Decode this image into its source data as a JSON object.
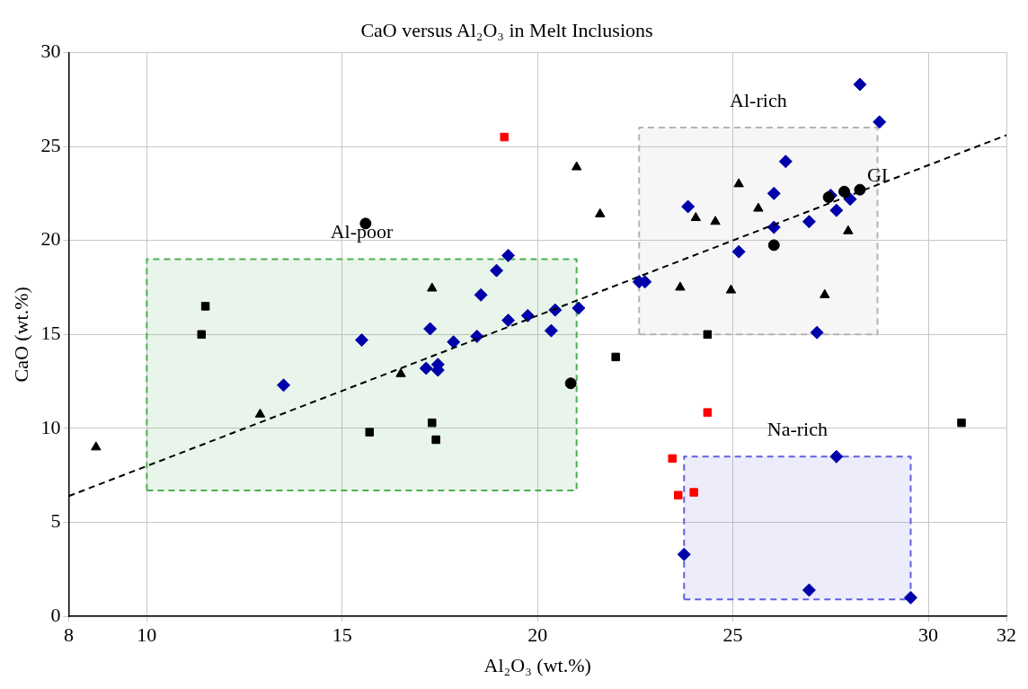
{
  "chart_data": {
    "type": "scatter",
    "title": "CaO versus Al₂O₃ in Melt Inclusions",
    "xlabel": "Al₂O₃ (wt.%)",
    "ylabel": "CaO (wt.%)",
    "xlim": [
      8,
      32
    ],
    "xticks": [
      8,
      10,
      15,
      20,
      25,
      30,
      32
    ],
    "ylim": [
      0,
      30
    ],
    "yticks": [
      0,
      5,
      10,
      15,
      20,
      25,
      30
    ],
    "grid": true,
    "legend": false,
    "series": [
      {
        "type": "area",
        "name": "Al-poor",
        "color": "#4caf50",
        "line_style": "dashed",
        "marker": "none",
        "x": [
          10,
          21,
          21,
          10,
          10
        ],
        "values": [
          6.7,
          6.7,
          19,
          19,
          6.7
        ]
      },
      {
        "type": "area",
        "name": "Al-rich",
        "color": "#b4b4b4",
        "line_style": "dashed",
        "marker": "none",
        "x": [
          22.6,
          28.7,
          28.7,
          22.6,
          22.6
        ],
        "values": [
          15,
          15,
          26,
          26,
          15
        ]
      },
      {
        "type": "area",
        "name": "Na-rich",
        "color": "#6060e0",
        "line_style": "dashed",
        "marker": "none",
        "x": [
          23.75,
          29.55,
          29.55,
          23.75,
          23.75
        ],
        "values": [
          0.9,
          0.9,
          8.5,
          8.5,
          0.9
        ]
      },
      {
        "type": "scatter",
        "color": "#0000aa",
        "marker": "diamond",
        "x": [
          13.5,
          15.5,
          17.15,
          17.25,
          17.45,
          17.45,
          17.85,
          18.45,
          18.55,
          18.95,
          19.25,
          19.25,
          19.75,
          20.45,
          20.35,
          21.05,
          22.6,
          22.75,
          23.85,
          26.35,
          26.05,
          26.05,
          25.15,
          26.95,
          27.65,
          28.0,
          27.5,
          27.15,
          28.25,
          28.75,
          27.65,
          23.75,
          26.95,
          29.55
        ],
        "values": [
          12.3,
          14.7,
          13.2,
          15.3,
          13.4,
          13.1,
          14.6,
          14.9,
          17.1,
          18.4,
          19.2,
          15.75,
          16.0,
          16.3,
          15.2,
          16.4,
          17.8,
          17.8,
          21.8,
          24.2,
          22.5,
          20.7,
          19.4,
          21.0,
          21.6,
          22.2,
          22.4,
          15.1,
          28.3,
          26.3,
          8.5,
          3.3,
          1.4,
          1.0
        ]
      },
      {
        "type": "scatter",
        "color": "#000000",
        "marker": "triangle",
        "x": [
          8.7,
          12.9,
          16.5,
          17.3,
          21.0,
          21.6,
          25.15,
          24.05,
          24.55,
          25.65,
          23.65,
          24.95,
          27.35,
          27.95
        ],
        "values": [
          9.0,
          10.75,
          12.9,
          17.45,
          23.9,
          21.4,
          23.0,
          21.2,
          21.0,
          21.7,
          17.5,
          17.35,
          17.1,
          20.5
        ]
      },
      {
        "type": "scatter",
        "color": "#000000",
        "marker": "circle",
        "x": [
          15.6,
          26.05,
          27.45,
          28.25
        ],
        "values": [
          20.9,
          19.75,
          22.3,
          22.7
        ]
      },
      {
        "type": "scatter",
        "color": "#000000",
        "marker": "circle",
        "x": [
          20.85,
          27.85
        ],
        "values": [
          12.4,
          22.6
        ]
      },
      {
        "type": "scatter",
        "color": "#000000",
        "marker": "square",
        "x": [
          11.5,
          11.4,
          17.3,
          17.4,
          22.0,
          24.35,
          30.85
        ],
        "values": [
          16.5,
          15.0,
          10.3,
          9.4,
          13.8,
          15.0,
          10.3
        ]
      },
      {
        "type": "scatter",
        "color": "#000000",
        "marker": "square",
        "x": [
          15.7
        ],
        "values": [
          9.8
        ]
      },
      {
        "type": "scatter",
        "color": "#ff0000",
        "marker": "square",
        "x": [
          19.15,
          24.35,
          23.45,
          23.6,
          24.0
        ],
        "values": [
          25.5,
          10.85,
          8.4,
          6.45,
          6.6
        ]
      },
      {
        "type": "line",
        "color": "#000000",
        "line_style": "dashed",
        "marker": "none",
        "x": [
          8,
          32
        ],
        "values": [
          6.4,
          25.6
        ]
      }
    ],
    "annotations": [
      {
        "text": "GI",
        "x": 28.25,
        "y": 22.7
      }
    ]
  }
}
